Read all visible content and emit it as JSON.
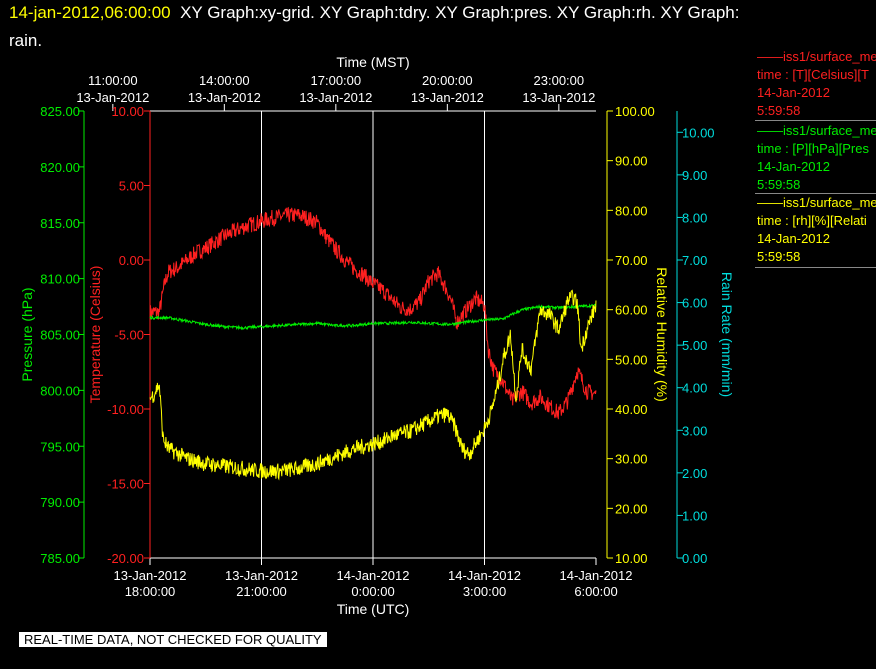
{
  "header": {
    "date_time": "14-jan-2012,06:00:00",
    "graph_list_line1": "XY Graph:xy-grid.  XY Graph:tdry.  XY Graph:pres.  XY Graph:rh.  XY Graph:",
    "graph_list_line2": "rain."
  },
  "legend": {
    "temperature": {
      "line1": "——iss1/surface_me",
      "line2": "time : [T][Celsius][T",
      "line3": "14-Jan-2012",
      "line4": "5:59:58"
    },
    "pressure": {
      "line1": "——iss1/surface_me",
      "line2": "time : [P][hPa][Pres",
      "line3": "14-Jan-2012",
      "line4": "5:59:58"
    },
    "humidity": {
      "line1": "——iss1/surface_me",
      "line2": "time : [rh][%][Relati",
      "line3": "14-Jan-2012",
      "line4": "5:59:58"
    }
  },
  "quality_notice": "REAL-TIME DATA, NOT CHECKED FOR QUALITY",
  "colors": {
    "temperature": "#ff2020",
    "pressure": "#00ee00",
    "humidity": "#ffff00",
    "rain": "#00dddd",
    "axis_text": "#ffffff",
    "grid": "#ffffff"
  },
  "chart_data": {
    "type": "line",
    "grid": true,
    "x_bottom": {
      "label": "Time (UTC)",
      "range_hours": [
        0,
        12
      ],
      "ticks": [
        {
          "h": 0,
          "date": "13-Jan-2012",
          "time": "18:00:00"
        },
        {
          "h": 3,
          "date": "13-Jan-2012",
          "time": "21:00:00"
        },
        {
          "h": 6,
          "date": "14-Jan-2012",
          "time": "0:00:00"
        },
        {
          "h": 9,
          "date": "14-Jan-2012",
          "time": "3:00:00"
        },
        {
          "h": 12,
          "date": "14-Jan-2012",
          "time": "6:00:00"
        }
      ]
    },
    "x_top": {
      "label": "Time (MST)",
      "ticks": [
        {
          "h": -1,
          "date": "13-Jan-2012",
          "time": "11:00:00"
        },
        {
          "h": 2,
          "date": "13-Jan-2012",
          "time": "14:00:00"
        },
        {
          "h": 5,
          "date": "13-Jan-2012",
          "time": "17:00:00"
        },
        {
          "h": 8,
          "date": "13-Jan-2012",
          "time": "20:00:00"
        },
        {
          "h": 11,
          "date": "13-Jan-2012",
          "time": "23:00:00"
        }
      ]
    },
    "axes": {
      "pressure": {
        "label": "Pressure (hPa)",
        "range": [
          785,
          825
        ],
        "ticks": [
          "785.00",
          "790.00",
          "795.00",
          "800.00",
          "805.00",
          "810.00",
          "815.00",
          "820.00",
          "825.00"
        ]
      },
      "temperature": {
        "label": "Temperature (Celsius)",
        "range": [
          -20,
          10
        ],
        "ticks": [
          "-20.00",
          "-15.00",
          "-10.00",
          "-5.00",
          "0.00",
          "5.00",
          "10.00"
        ]
      },
      "humidity": {
        "label": "Relative Humidity (%)",
        "range": [
          10,
          100
        ],
        "ticks": [
          "10.00",
          "20.00",
          "30.00",
          "40.00",
          "50.00",
          "60.00",
          "70.00",
          "80.00",
          "90.00",
          "100.00"
        ]
      },
      "rain": {
        "label": "Rain Rate (mm/min)",
        "range": [
          0,
          10.5
        ],
        "ticks": [
          "0.00",
          "1.00",
          "2.00",
          "3.00",
          "4.00",
          "5.00",
          "6.00",
          "7.00",
          "8.00",
          "9.00",
          "10.00"
        ]
      }
    },
    "series": [
      {
        "name": "Temperature",
        "axis": "temperature",
        "x_hours_utc": [
          0,
          0.25,
          0.4,
          0.5,
          0.75,
          1,
          1.25,
          1.5,
          1.75,
          2,
          2.25,
          2.5,
          2.75,
          3,
          3.25,
          3.5,
          3.75,
          4,
          4.25,
          4.5,
          4.75,
          5,
          5.25,
          5.5,
          5.75,
          6,
          6.25,
          6.5,
          6.75,
          7,
          7.25,
          7.5,
          7.75,
          8,
          8.1,
          8.25,
          8.5,
          8.75,
          9,
          9.1,
          9.25,
          9.4,
          9.5,
          9.75,
          10,
          10.25,
          10.5,
          10.75,
          11,
          11.25,
          11.5,
          11.75,
          12
        ],
        "values": [
          -3.5,
          -3.5,
          -1.5,
          -0.8,
          -0.5,
          0.0,
          0.5,
          0.8,
          1.2,
          1.6,
          1.9,
          2.2,
          2.4,
          2.6,
          2.8,
          2.9,
          3.0,
          3.0,
          2.8,
          2.5,
          1.5,
          0.7,
          0.0,
          -0.6,
          -1.0,
          -1.6,
          -2.0,
          -2.6,
          -3.2,
          -3.3,
          -2.8,
          -1.4,
          -0.9,
          -2.1,
          -2.7,
          -4.2,
          -3.4,
          -2.6,
          -3.0,
          -6.0,
          -7.4,
          -7.8,
          -8.2,
          -9.5,
          -8.8,
          -9.6,
          -9.2,
          -9.8,
          -10.3,
          -9.4,
          -7.4,
          -8.8,
          -9.0
        ]
      },
      {
        "name": "Pressure",
        "axis": "pressure",
        "x_hours_utc": [
          0,
          0.5,
          1,
          1.5,
          2,
          2.5,
          3,
          3.5,
          4,
          4.5,
          5,
          5.5,
          6,
          6.5,
          7,
          7.5,
          8,
          8.5,
          9,
          9.5,
          10,
          10.5,
          11,
          11.5,
          12
        ],
        "values": [
          806.5,
          806.5,
          806.2,
          805.9,
          805.7,
          805.6,
          805.7,
          805.8,
          805.9,
          806.0,
          805.8,
          805.8,
          806.0,
          806.0,
          806.1,
          806.0,
          805.9,
          806.1,
          806.3,
          806.4,
          807.2,
          807.5,
          807.4,
          807.5,
          807.6
        ]
      },
      {
        "name": "Relative Humidity",
        "axis": "humidity",
        "x_hours_utc": [
          0,
          0.1,
          0.25,
          0.35,
          0.5,
          0.75,
          1,
          1.5,
          2,
          2.5,
          3,
          3.5,
          4,
          4.5,
          5,
          5.5,
          6,
          6.25,
          6.5,
          6.75,
          7,
          7.25,
          7.5,
          7.75,
          8,
          8.2,
          8.4,
          8.6,
          8.75,
          9,
          9.2,
          9.4,
          9.5,
          9.7,
          9.85,
          10,
          10.25,
          10.5,
          10.75,
          11,
          11.25,
          11.4,
          11.5,
          11.6,
          11.75,
          12
        ],
        "values": [
          42,
          43,
          45,
          34,
          32,
          31,
          30,
          29,
          28.5,
          28,
          27.5,
          27.5,
          28,
          29,
          30.5,
          32,
          33,
          33.5,
          34.5,
          35,
          35.5,
          36.5,
          37.5,
          38.5,
          39,
          36.5,
          32,
          31,
          33,
          36,
          40,
          46,
          50,
          55,
          42,
          52,
          48,
          60,
          59,
          56,
          62,
          62.5,
          61,
          52,
          56,
          61
        ]
      }
    ]
  }
}
